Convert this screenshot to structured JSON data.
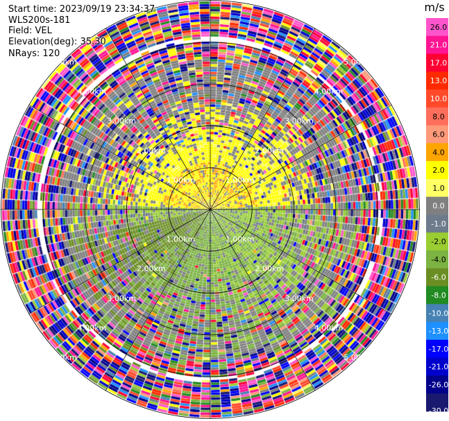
{
  "header": {
    "start_time": "Start time: 2023/09/19 23:34:37",
    "instrument": "WLS200s-181",
    "field": "Field: VEL",
    "elevation": "Elevation(deg): 35.30",
    "nrays": "NRays: 120"
  },
  "chart_data": {
    "type": "heatmap",
    "subtype": "ppi-polar",
    "field": "VEL",
    "units": "m/s",
    "elevation_deg": 35.3,
    "nrays": 120,
    "range_ring_labels": [
      "1.00km",
      "2.00km",
      "3.00km",
      "4.00km",
      "5.00km"
    ],
    "range_rings_km": [
      1,
      2,
      3,
      4,
      5
    ],
    "max_range_km": 5.0,
    "colorbar": {
      "title": "m/s",
      "ticks": [
        "26.0",
        "21.0",
        "17.0",
        "13.0",
        "10.0",
        "8.0",
        "6.0",
        "4.0",
        "2.0",
        "1.0",
        "0.0",
        "-1.0",
        "-2.0",
        "-4.0",
        "-6.0",
        "-8.0",
        "-10.0",
        "-13.0",
        "-17.0",
        "-21.0",
        "-26.0",
        "-30.0"
      ],
      "bins": [
        {
          "min": 26,
          "max": 30,
          "color": "#ff55cc"
        },
        {
          "min": 21,
          "max": 26,
          "color": "#ff1493"
        },
        {
          "min": 17,
          "max": 21,
          "color": "#ff0033"
        },
        {
          "min": 13,
          "max": 17,
          "color": "#ff2a00"
        },
        {
          "min": 10,
          "max": 13,
          "color": "#ff4a2a"
        },
        {
          "min": 8,
          "max": 10,
          "color": "#ff6e5a"
        },
        {
          "min": 6,
          "max": 8,
          "color": "#ff9a7a"
        },
        {
          "min": 4,
          "max": 6,
          "color": "#ffa500"
        },
        {
          "min": 2,
          "max": 4,
          "color": "#ffff00"
        },
        {
          "min": 1,
          "max": 2,
          "color": "#ffff66"
        },
        {
          "min": 0,
          "max": 1,
          "color": "#808080"
        },
        {
          "min": -1,
          "max": 0,
          "color": "#6e7b8b"
        },
        {
          "min": -2,
          "max": -1,
          "color": "#9acd32"
        },
        {
          "min": -4,
          "max": -2,
          "color": "#7cb342"
        },
        {
          "min": -6,
          "max": -4,
          "color": "#6b8e23"
        },
        {
          "min": -8,
          "max": -6,
          "color": "#228b22"
        },
        {
          "min": -10,
          "max": -8,
          "color": "#4682b4"
        },
        {
          "min": -13,
          "max": -10,
          "color": "#1e90ff"
        },
        {
          "min": -17,
          "max": -13,
          "color": "#0000ff"
        },
        {
          "min": -21,
          "max": -17,
          "color": "#0000cd"
        },
        {
          "min": -26,
          "max": -21,
          "color": "#00008b"
        },
        {
          "min": -30,
          "max": -26,
          "color": "#191970"
        }
      ]
    },
    "velocity_regions": [
      {
        "region": "north, inner 0–2 km",
        "approx_ms": 2.5,
        "dominant_color": "yellow / orange"
      },
      {
        "region": "south-west, inner 0–4 km",
        "approx_ms": -5.0,
        "dominant_color": "green"
      },
      {
        "region": "south-east, inner 0–4 km",
        "approx_ms": -2.0,
        "dominant_color": "yellow-green"
      },
      {
        "region": "outer ring > 4 km",
        "approx_ms": "noise",
        "dominant_color": "mixed"
      }
    ]
  }
}
